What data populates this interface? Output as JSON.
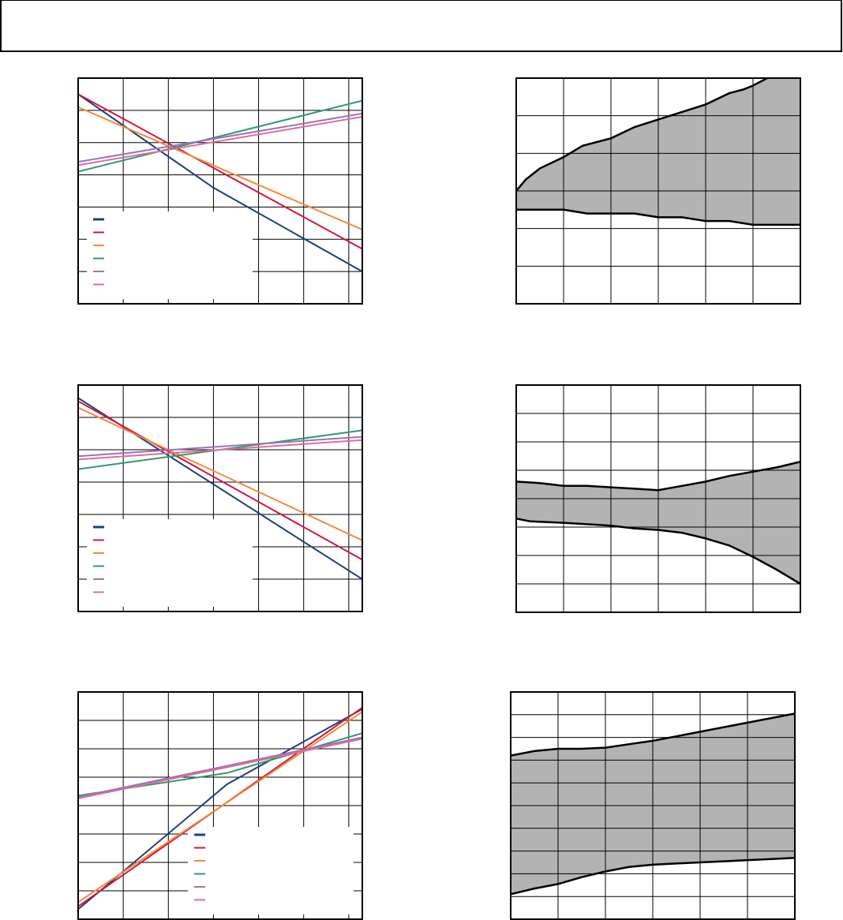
{
  "header": {
    "text": ""
  },
  "colors": {
    "navy": "#1f3f7a",
    "red": "#d2173f",
    "orange": "#f58a3a",
    "green": "#2f9a6a",
    "purple": "#9b73b7",
    "pink": "#e06c9b",
    "band_fill": "#b3b3b3",
    "grid": "#000000"
  },
  "chart_data": [
    {
      "id": "left-1",
      "type": "line",
      "title": "",
      "grid": true,
      "legend": {
        "placement": "bottom-left",
        "entries": [
          "",
          "",
          "",
          "",
          "",
          ""
        ]
      },
      "xlim": [
        0,
        6.3
      ],
      "ylim": [
        0,
        7
      ],
      "x_gridlines": [
        1,
        2,
        3,
        4,
        5,
        6
      ],
      "y_gridlines": [
        1,
        2,
        3,
        4,
        5,
        6
      ],
      "series": [
        {
          "color": "navy",
          "x": [
            0,
            3,
            6.3
          ],
          "y": [
            6.5,
            3.6,
            1.0
          ]
        },
        {
          "color": "red",
          "x": [
            0,
            6.3
          ],
          "y": [
            6.5,
            1.7
          ]
        },
        {
          "color": "orange",
          "x": [
            0,
            6.3
          ],
          "y": [
            6.1,
            2.3
          ]
        },
        {
          "color": "green",
          "x": [
            0,
            6.3
          ],
          "y": [
            4.1,
            6.3
          ]
        },
        {
          "color": "purple",
          "x": [
            0,
            6.3
          ],
          "y": [
            4.4,
            5.9
          ]
        },
        {
          "color": "pink",
          "x": [
            0,
            6.3
          ],
          "y": [
            4.3,
            5.8
          ]
        }
      ]
    },
    {
      "id": "right-1",
      "type": "area",
      "title": "",
      "grid": true,
      "xlim": [
        0,
        6
      ],
      "ylim": [
        0,
        6
      ],
      "x_gridlines": [
        1,
        2,
        3,
        4,
        5
      ],
      "y_gridlines": [
        1,
        2,
        3,
        4,
        5
      ],
      "upper": {
        "x": [
          0,
          0.2,
          0.5,
          1,
          1.4,
          2,
          2.5,
          3,
          3.5,
          4,
          4.5,
          4.8,
          5,
          5.3,
          5.6,
          6
        ],
        "y": [
          3.0,
          3.3,
          3.6,
          3.9,
          4.2,
          4.4,
          4.7,
          4.9,
          5.1,
          5.3,
          5.6,
          5.7,
          5.8,
          6.0,
          6.2,
          6.4
        ]
      },
      "lower": {
        "x": [
          0,
          0.5,
          1,
          1.5,
          2,
          2.5,
          3,
          3.5,
          4,
          4.5,
          5,
          5.4,
          5.6,
          6
        ],
        "y": [
          2.5,
          2.5,
          2.5,
          2.4,
          2.4,
          2.4,
          2.3,
          2.3,
          2.2,
          2.2,
          2.1,
          2.1,
          2.1,
          2.1
        ]
      }
    },
    {
      "id": "left-2",
      "type": "line",
      "title": "",
      "grid": true,
      "legend": {
        "placement": "bottom-left",
        "entries": [
          "",
          "",
          "",
          "",
          "",
          ""
        ]
      },
      "xlim": [
        0,
        6.3
      ],
      "ylim": [
        0,
        7
      ],
      "x_gridlines": [
        1,
        2,
        3,
        4,
        5,
        6
      ],
      "y_gridlines": [
        1,
        2,
        3,
        4,
        5,
        6
      ],
      "series": [
        {
          "color": "navy",
          "x": [
            0,
            6.3
          ],
          "y": [
            6.6,
            1.0
          ]
        },
        {
          "color": "red",
          "x": [
            0,
            6.3
          ],
          "y": [
            6.5,
            1.6
          ]
        },
        {
          "color": "orange",
          "x": [
            0,
            6.3
          ],
          "y": [
            6.3,
            2.2
          ]
        },
        {
          "color": "green",
          "x": [
            0,
            6.3
          ],
          "y": [
            4.4,
            5.6
          ]
        },
        {
          "color": "purple",
          "x": [
            0,
            6.3
          ],
          "y": [
            4.8,
            5.4
          ]
        },
        {
          "color": "pink",
          "x": [
            0,
            6.3
          ],
          "y": [
            4.7,
            5.3
          ]
        }
      ]
    },
    {
      "id": "right-2",
      "type": "area",
      "title": "",
      "grid": true,
      "xlim": [
        0,
        6
      ],
      "ylim": [
        0,
        8
      ],
      "x_gridlines": [
        1,
        2,
        3,
        4,
        5
      ],
      "y_gridlines": [
        1,
        2,
        3,
        4,
        5,
        6,
        7
      ],
      "upper": {
        "x": [
          0,
          0.5,
          1,
          1.5,
          2,
          2.5,
          3,
          3.5,
          4,
          4.5,
          5,
          5.5,
          6
        ],
        "y": [
          4.6,
          4.55,
          4.45,
          4.45,
          4.4,
          4.35,
          4.3,
          4.45,
          4.6,
          4.8,
          4.95,
          5.1,
          5.3
        ]
      },
      "lower": {
        "x": [
          0,
          0.3,
          1,
          1.5,
          2,
          2.5,
          3,
          3.5,
          4,
          4.5,
          5,
          5.5,
          6
        ],
        "y": [
          3.3,
          3.2,
          3.15,
          3.1,
          3.05,
          2.95,
          2.9,
          2.8,
          2.6,
          2.35,
          1.95,
          1.5,
          1.0
        ]
      }
    },
    {
      "id": "left-3",
      "type": "line",
      "title": "",
      "grid": true,
      "legend": {
        "placement": "bottom-right",
        "entries": [
          "",
          "",
          "",
          "",
          "",
          ""
        ]
      },
      "xlim": [
        0,
        6.3
      ],
      "ylim": [
        0,
        8
      ],
      "x_gridlines": [
        1,
        2,
        3,
        4,
        5,
        6
      ],
      "y_gridlines": [
        1,
        2,
        3,
        4,
        5,
        6,
        7
      ],
      "series": [
        {
          "color": "navy",
          "x": [
            0,
            3.3,
            6.3
          ],
          "y": [
            0.35,
            4.75,
            7.4
          ]
        },
        {
          "color": "red",
          "x": [
            0,
            6.3
          ],
          "y": [
            0.45,
            7.45
          ]
        },
        {
          "color": "orange",
          "x": [
            0,
            6.3
          ],
          "y": [
            0.6,
            7.3
          ]
        },
        {
          "color": "green",
          "x": [
            0,
            3.3,
            6.3
          ],
          "y": [
            4.35,
            5.15,
            6.55
          ]
        },
        {
          "color": "purple",
          "x": [
            0,
            6.3
          ],
          "y": [
            4.3,
            6.4
          ]
        },
        {
          "color": "pink",
          "x": [
            0,
            6.3
          ],
          "y": [
            4.25,
            6.35
          ]
        }
      ]
    },
    {
      "id": "right-3",
      "type": "area",
      "title": "",
      "grid": true,
      "xlim": [
        0,
        6
      ],
      "ylim": [
        0,
        10
      ],
      "x_gridlines": [
        1,
        2,
        3,
        4,
        5
      ],
      "y_gridlines": [
        1,
        2,
        3,
        4,
        5,
        6,
        7,
        8,
        9
      ],
      "upper": {
        "x": [
          0,
          0.5,
          1,
          1.5,
          2,
          2.5,
          3,
          3.5,
          4,
          4.5,
          5,
          5.5,
          6
        ],
        "y": [
          7.2,
          7.4,
          7.5,
          7.5,
          7.55,
          7.7,
          7.85,
          8.05,
          8.25,
          8.45,
          8.65,
          8.85,
          9.05
        ]
      },
      "lower": {
        "x": [
          0,
          0.5,
          1,
          1.5,
          2,
          2.5,
          3,
          3.5,
          4,
          4.5,
          5,
          5.5,
          6
        ],
        "y": [
          1.1,
          1.35,
          1.55,
          1.85,
          2.1,
          2.3,
          2.4,
          2.45,
          2.5,
          2.55,
          2.6,
          2.65,
          2.7
        ]
      }
    }
  ]
}
